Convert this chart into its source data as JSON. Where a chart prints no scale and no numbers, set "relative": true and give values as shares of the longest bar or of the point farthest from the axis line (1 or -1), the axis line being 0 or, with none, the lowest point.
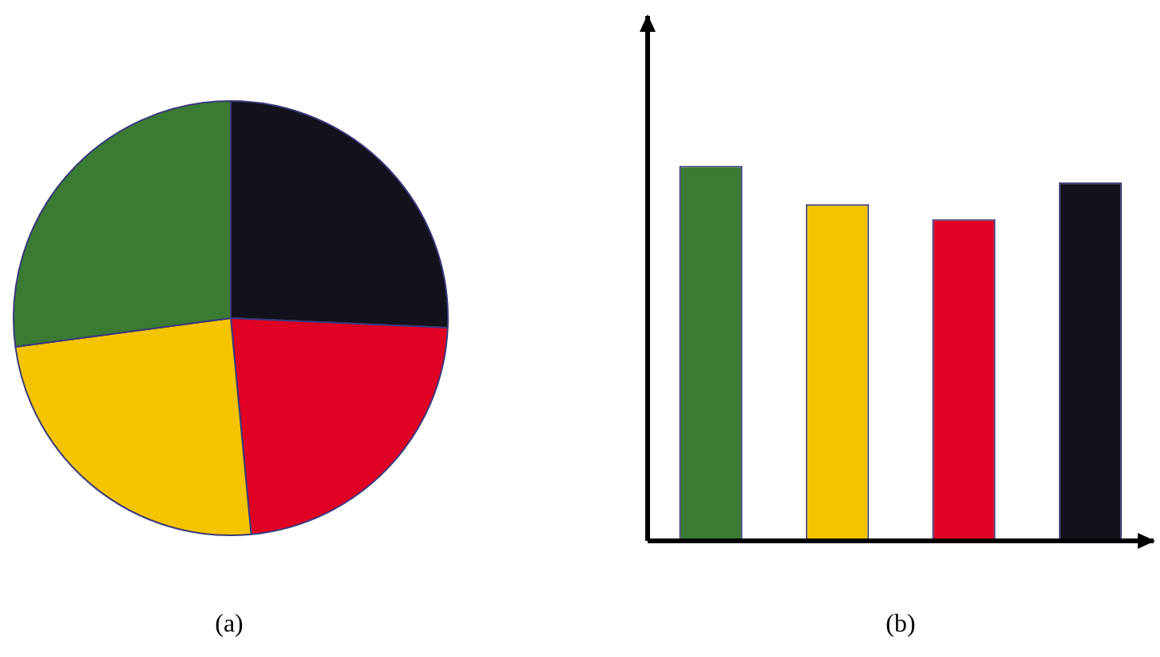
{
  "chart_data": [
    {
      "type": "pie",
      "title": "(a)",
      "categories": [
        null,
        null,
        null,
        null
      ],
      "values": [
        25.7,
        22.8,
        24.4,
        27.1
      ],
      "colors": [
        "#12121c",
        "#e00024",
        "#f5c400",
        "#3a7a32"
      ]
    },
    {
      "type": "bar",
      "title": "(b)",
      "relative": true,
      "tick_labels": false,
      "categories": [
        null,
        null,
        null,
        null
      ],
      "values": [
        1,
        0.898,
        0.858,
        0.956
      ],
      "colors": [
        "#3a7a32",
        "#f5c400",
        "#e00024",
        "#12121c"
      ]
    }
  ]
}
